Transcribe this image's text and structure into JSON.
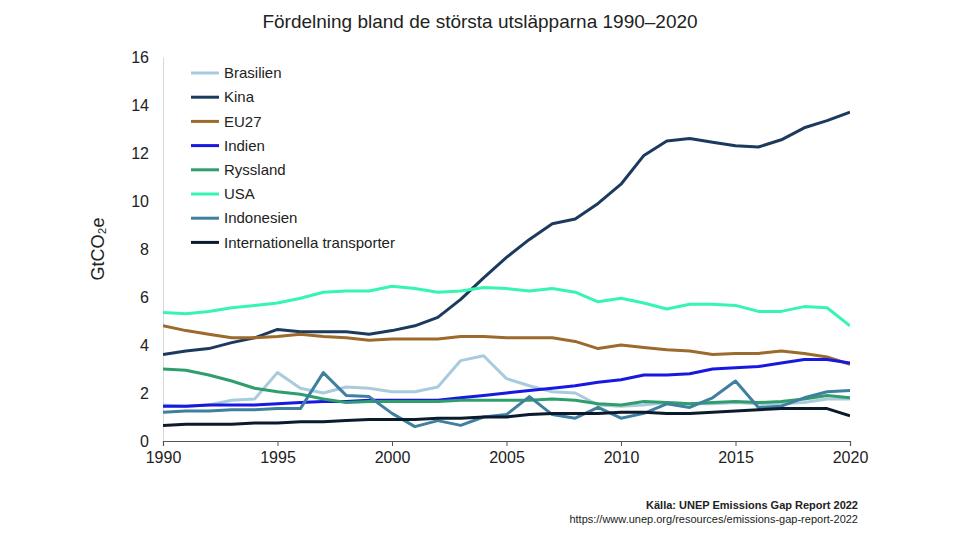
{
  "chart_data": {
    "type": "line",
    "title": "Fördelning bland de största utsläpparna 1990–2020",
    "y_label": "GtCO₂e",
    "annotations": [
      "Källa: UNEP Emissions Gap Report 2022",
      "https://www.unep.org/resources/emissions-gap-report-2022"
    ],
    "x": [
      1990,
      1991,
      1992,
      1993,
      1994,
      1995,
      1996,
      1997,
      1998,
      1999,
      2000,
      2001,
      2002,
      2003,
      2004,
      2005,
      2006,
      2007,
      2008,
      2009,
      2010,
      2011,
      2012,
      2013,
      2014,
      2015,
      2016,
      2017,
      2018,
      2019,
      2020
    ],
    "xlim": [
      1990,
      2020
    ],
    "xticks": [
      1990,
      1995,
      2000,
      2005,
      2010,
      2015,
      2020
    ],
    "ylim": [
      0,
      16
    ],
    "yticks": [
      0,
      2,
      4,
      6,
      8,
      10,
      12,
      14,
      16
    ],
    "grid": false,
    "legend": "upper left",
    "series": [
      {
        "name": "Brasilien",
        "color": "#a9cbde",
        "values": [
          1.5,
          1.45,
          1.5,
          1.7,
          1.75,
          2.85,
          2.2,
          2.0,
          2.25,
          2.2,
          2.05,
          2.05,
          2.25,
          3.35,
          3.55,
          2.6,
          2.3,
          2.05,
          2.0,
          1.5,
          1.45,
          1.5,
          1.6,
          1.55,
          1.55,
          1.6,
          1.55,
          1.55,
          1.6,
          1.75,
          1.75
        ]
      },
      {
        "name": "Kina",
        "color": "#1c3a5e",
        "values": [
          3.6,
          3.75,
          3.85,
          4.1,
          4.3,
          4.65,
          4.55,
          4.55,
          4.55,
          4.45,
          4.6,
          4.8,
          5.15,
          5.9,
          6.8,
          7.65,
          8.4,
          9.05,
          9.25,
          9.9,
          10.7,
          11.9,
          12.5,
          12.6,
          12.45,
          12.3,
          12.25,
          12.55,
          13.05,
          13.35,
          13.7
        ]
      },
      {
        "name": "EU27",
        "color": "#9c6a2c",
        "values": [
          4.8,
          4.6,
          4.45,
          4.3,
          4.3,
          4.35,
          4.45,
          4.35,
          4.3,
          4.2,
          4.25,
          4.25,
          4.25,
          4.35,
          4.35,
          4.3,
          4.3,
          4.3,
          4.15,
          3.85,
          4.0,
          3.9,
          3.8,
          3.75,
          3.6,
          3.65,
          3.65,
          3.75,
          3.65,
          3.5,
          3.2
        ]
      },
      {
        "name": "Indien",
        "color": "#1818e0",
        "values": [
          1.45,
          1.45,
          1.5,
          1.5,
          1.5,
          1.55,
          1.6,
          1.65,
          1.65,
          1.7,
          1.7,
          1.7,
          1.7,
          1.8,
          1.9,
          2.0,
          2.1,
          2.2,
          2.3,
          2.45,
          2.55,
          2.75,
          2.75,
          2.8,
          3.0,
          3.05,
          3.1,
          3.25,
          3.4,
          3.4,
          3.25
        ]
      },
      {
        "name": "Ryssland",
        "color": "#2f9e6c",
        "values": [
          3.0,
          2.95,
          2.75,
          2.5,
          2.2,
          2.05,
          1.95,
          1.75,
          1.6,
          1.65,
          1.65,
          1.65,
          1.65,
          1.7,
          1.7,
          1.7,
          1.7,
          1.75,
          1.7,
          1.55,
          1.5,
          1.65,
          1.6,
          1.55,
          1.6,
          1.65,
          1.6,
          1.65,
          1.75,
          1.9,
          1.8
        ]
      },
      {
        "name": "USA",
        "color": "#36f5b0",
        "values": [
          5.35,
          5.3,
          5.4,
          5.55,
          5.65,
          5.75,
          5.95,
          6.2,
          6.25,
          6.25,
          6.45,
          6.35,
          6.2,
          6.25,
          6.4,
          6.35,
          6.25,
          6.35,
          6.2,
          5.8,
          5.95,
          5.75,
          5.5,
          5.7,
          5.7,
          5.65,
          5.4,
          5.4,
          5.6,
          5.55,
          4.8
        ]
      },
      {
        "name": "Indonesien",
        "color": "#3f809f",
        "values": [
          1.2,
          1.25,
          1.25,
          1.3,
          1.3,
          1.35,
          1.35,
          2.85,
          1.9,
          1.85,
          1.15,
          0.6,
          0.85,
          0.65,
          1.0,
          1.1,
          1.85,
          1.1,
          0.95,
          1.4,
          0.95,
          1.15,
          1.55,
          1.4,
          1.8,
          2.5,
          1.4,
          1.45,
          1.8,
          2.05,
          2.1
        ]
      },
      {
        "name": "Internationella transporter",
        "color": "#0b1a2d",
        "values": [
          0.65,
          0.7,
          0.7,
          0.7,
          0.75,
          0.75,
          0.8,
          0.8,
          0.85,
          0.9,
          0.9,
          0.9,
          0.95,
          0.95,
          1.0,
          1.0,
          1.1,
          1.15,
          1.15,
          1.15,
          1.2,
          1.2,
          1.15,
          1.15,
          1.2,
          1.25,
          1.3,
          1.35,
          1.35,
          1.35,
          1.05
        ]
      }
    ]
  }
}
